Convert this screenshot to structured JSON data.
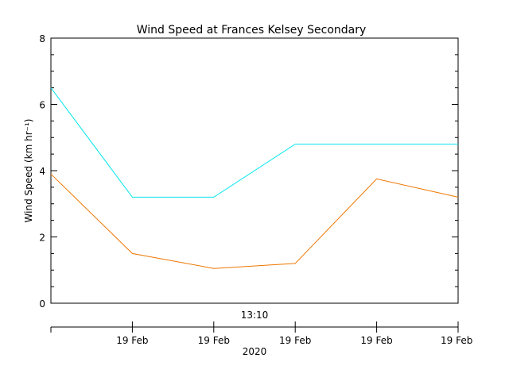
{
  "chart_data": {
    "type": "line",
    "title": "Wind Speed at Frances Kelsey Secondary",
    "ylabel": "Wind Speed (km hr⁻¹)",
    "ylim": [
      0,
      8
    ],
    "y_ticks": [
      0,
      2,
      4,
      6,
      8
    ],
    "x": [
      0,
      1,
      2,
      3,
      4,
      5
    ],
    "xlim": [
      0,
      5
    ],
    "time_label": "13:10",
    "x_tick_labels": [
      {
        "x": 1,
        "label": "19 Feb"
      },
      {
        "x": 2,
        "label": "19 Feb"
      },
      {
        "x": 3,
        "label": "19 Feb"
      },
      {
        "x": 4,
        "label": "19 Feb"
      },
      {
        "x": 5,
        "label": "19 Feb"
      }
    ],
    "year_label": "2020",
    "grid": false,
    "legend": "none",
    "series": [
      {
        "color": "#00e5ee",
        "values": [
          6.5,
          3.2,
          3.2,
          4.8,
          4.8,
          4.8
        ]
      },
      {
        "color": "#ee7600",
        "values": [
          3.9,
          1.5,
          1.05,
          1.2,
          3.75,
          3.2
        ]
      }
    ]
  }
}
